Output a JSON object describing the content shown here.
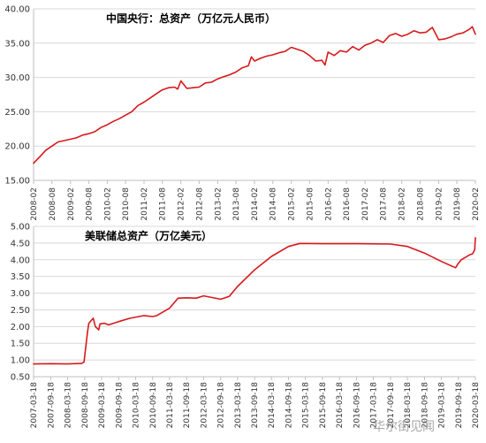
{
  "chart_data": [
    {
      "type": "line",
      "title": "中国央行：总资产（万亿元人民币）",
      "xlabel": "",
      "ylabel": "",
      "ylim": [
        15.0,
        40.0
      ],
      "yticks": [
        "15.00",
        "20.00",
        "25.00",
        "30.00",
        "35.00",
        "40.00"
      ],
      "y_tick_values": [
        15,
        20,
        25,
        30,
        35,
        40
      ],
      "x_range": [
        "2008-02",
        "2020-02"
      ],
      "x_tick_labels": [
        "2008-02",
        "2008-08",
        "2009-02",
        "2009-08",
        "2010-02",
        "2010-08",
        "2011-02",
        "2011-08",
        "2012-02",
        "2012-08",
        "2013-02",
        "2013-08",
        "2014-02",
        "2014-08",
        "2015-02",
        "2015-08",
        "2016-02",
        "2016-08",
        "2017-02",
        "2017-08",
        "2018-02",
        "2018-08",
        "2019-02",
        "2019-08",
        "2020-02"
      ],
      "grid": "horizontal",
      "line_color": "#d7191c",
      "series": [
        {
          "x": [
            "2008-02",
            "2008-04",
            "2008-06",
            "2008-08",
            "2008-10",
            "2008-12",
            "2009-02",
            "2009-04",
            "2009-06",
            "2009-08",
            "2009-10",
            "2009-12",
            "2010-02",
            "2010-04",
            "2010-06",
            "2010-08",
            "2010-10",
            "2010-12",
            "2011-02",
            "2011-04",
            "2011-06",
            "2011-08",
            "2011-10",
            "2011-12",
            "2012-01",
            "2012-02",
            "2012-04",
            "2012-06",
            "2012-08",
            "2012-10",
            "2012-12",
            "2013-02",
            "2013-04",
            "2013-06",
            "2013-08",
            "2013-10",
            "2013-12",
            "2014-01",
            "2014-02",
            "2014-04",
            "2014-06",
            "2014-08",
            "2014-10",
            "2014-12",
            "2015-02",
            "2015-04",
            "2015-06",
            "2015-08",
            "2015-10",
            "2015-12",
            "2016-01",
            "2016-02",
            "2016-04",
            "2016-06",
            "2016-08",
            "2016-10",
            "2016-12",
            "2017-02",
            "2017-04",
            "2017-06",
            "2017-08",
            "2017-10",
            "2017-12",
            "2018-02",
            "2018-04",
            "2018-06",
            "2018-08",
            "2018-10",
            "2018-12",
            "2019-02",
            "2019-04",
            "2019-06",
            "2019-08",
            "2019-10",
            "2019-12",
            "2020-01",
            "2020-02"
          ],
          "values": [
            17.5,
            18.4,
            19.4,
            20.0,
            20.6,
            20.8,
            21.0,
            21.2,
            21.6,
            21.8,
            22.1,
            22.7,
            23.1,
            23.6,
            24.0,
            24.5,
            25.0,
            25.9,
            26.4,
            27.0,
            27.6,
            28.2,
            28.5,
            28.6,
            28.3,
            29.5,
            28.4,
            28.5,
            28.6,
            29.2,
            29.3,
            29.8,
            30.1,
            30.4,
            30.8,
            31.4,
            31.7,
            33.0,
            32.4,
            32.8,
            33.1,
            33.3,
            33.6,
            33.8,
            34.4,
            34.1,
            33.8,
            33.2,
            32.4,
            32.5,
            31.8,
            33.7,
            33.2,
            33.9,
            33.7,
            34.5,
            34.0,
            34.7,
            35.0,
            35.5,
            35.1,
            36.1,
            36.4,
            36.0,
            36.3,
            36.8,
            36.5,
            36.6,
            37.3,
            35.5,
            35.6,
            35.9,
            36.3,
            36.5,
            37.0,
            37.4,
            36.3
          ]
        }
      ]
    },
    {
      "type": "line",
      "title": "美联储总资产（万亿美元）",
      "xlabel": "",
      "ylabel": "",
      "ylim": [
        0.5,
        5.0
      ],
      "yticks": [
        "0.50",
        "1.00",
        "1.50",
        "2.00",
        "2.50",
        "3.00",
        "3.50",
        "4.00",
        "4.50",
        "5.00"
      ],
      "y_tick_values": [
        0.5,
        1.0,
        1.5,
        2.0,
        2.5,
        3.0,
        3.5,
        4.0,
        4.5,
        5.0
      ],
      "x_range": [
        "2007-03-18",
        "2020-03-18"
      ],
      "x_tick_labels": [
        "2007-03-18",
        "2007-09-18",
        "2008-03-18",
        "2008-09-18",
        "2009-03-18",
        "2009-09-18",
        "2010-03-18",
        "2010-09-18",
        "2011-03-18",
        "2011-09-18",
        "2012-03-18",
        "2012-09-18",
        "2013-03-18",
        "2013-09-18",
        "2014-03-18",
        "2014-09-18",
        "2015-03-18",
        "2015-09-18",
        "2016-03-18",
        "2016-09-18",
        "2017-03-18",
        "2017-09-18",
        "2018-03-18",
        "2018-09-18",
        "2019-03-18",
        "2019-09-18",
        "2020-03-18"
      ],
      "grid": "horizontal",
      "line_color": "#d7191c",
      "series": [
        {
          "x": [
            "2007-03-18",
            "2007-09-18",
            "2008-03-18",
            "2008-08-18",
            "2008-09-10",
            "2008-10-18",
            "2008-11-01",
            "2008-12-18",
            "2009-01-10",
            "2009-02-15",
            "2009-03-01",
            "2009-04-18",
            "2009-06-01",
            "2009-09-18",
            "2010-01-18",
            "2010-06-18",
            "2010-09-18",
            "2010-11-01",
            "2011-03-18",
            "2011-06-18",
            "2011-09-18",
            "2012-01-01",
            "2012-03-18",
            "2012-09-18",
            "2012-12-18",
            "2013-03-18",
            "2013-09-18",
            "2014-03-18",
            "2014-09-18",
            "2015-01-18",
            "2015-09-18",
            "2016-09-18",
            "2017-09-18",
            "2018-03-18",
            "2018-09-18",
            "2019-03-18",
            "2019-08-18",
            "2019-09-18",
            "2019-10-18",
            "2020-01-18",
            "2020-02-18",
            "2020-03-10",
            "2020-03-18"
          ],
          "values": [
            0.88,
            0.89,
            0.88,
            0.9,
            0.94,
            1.85,
            2.1,
            2.25,
            2.0,
            1.9,
            2.08,
            2.1,
            2.05,
            2.15,
            2.25,
            2.33,
            2.3,
            2.33,
            2.55,
            2.85,
            2.86,
            2.85,
            2.92,
            2.82,
            2.9,
            3.2,
            3.7,
            4.1,
            4.4,
            4.49,
            4.48,
            4.48,
            4.47,
            4.4,
            4.2,
            3.95,
            3.76,
            3.9,
            4.0,
            4.15,
            4.18,
            4.3,
            4.66
          ]
        }
      ]
    }
  ],
  "watermark": {
    "text": "华尔街见闻"
  }
}
